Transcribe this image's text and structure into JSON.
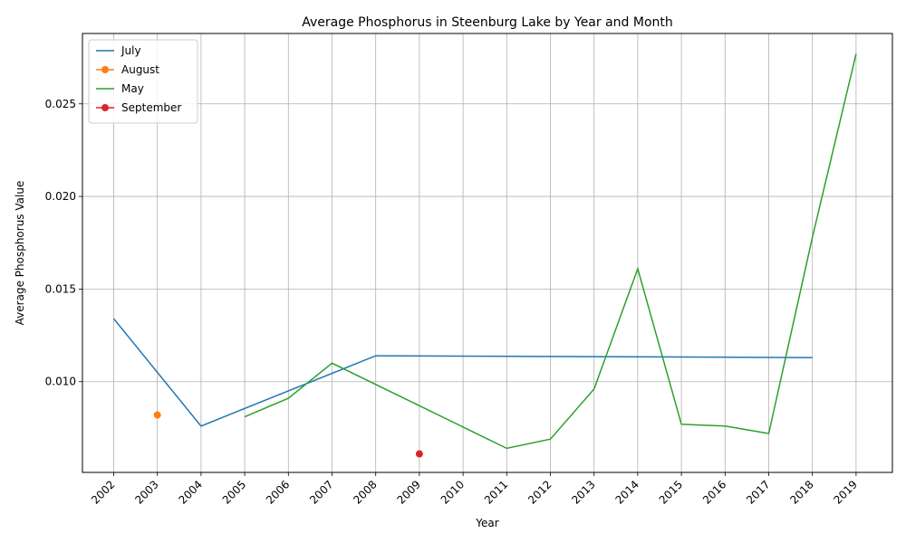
{
  "chart_data": {
    "type": "line",
    "title": "Average Phosphorus in Steenburg Lake by Year and Month",
    "xlabel": "Year",
    "ylabel": "Average Phosphorus Value",
    "categories": [
      "2002",
      "2003",
      "2004",
      "2005",
      "2006",
      "2007",
      "2008",
      "2009",
      "2010",
      "2011",
      "2012",
      "2013",
      "2014",
      "2015",
      "2016",
      "2017",
      "2018",
      "2019"
    ],
    "yticks": [
      "0.010",
      "0.015",
      "0.020",
      "0.025"
    ],
    "ylim": [
      0.0051,
      0.0288
    ],
    "grid": true,
    "legend": "top-left",
    "series": [
      {
        "name": "July",
        "color": "#1f77b4",
        "marker": false,
        "points": [
          [
            2002,
            0.0134
          ],
          [
            2004,
            0.0076
          ],
          [
            2008,
            0.0114
          ],
          [
            2018,
            0.0113
          ]
        ]
      },
      {
        "name": "August",
        "color": "#ff7f0e",
        "marker": true,
        "points": [
          [
            2003,
            0.0082
          ]
        ]
      },
      {
        "name": "May",
        "color": "#2ca02c",
        "marker": false,
        "points": [
          [
            2005,
            0.0081
          ],
          [
            2006,
            0.0091
          ],
          [
            2007,
            0.011
          ],
          [
            2011,
            0.0064
          ],
          [
            2012,
            0.0069
          ],
          [
            2013,
            0.0096
          ],
          [
            2014,
            0.0161
          ],
          [
            2015,
            0.0077
          ],
          [
            2016,
            0.0076
          ],
          [
            2017,
            0.0072
          ],
          [
            2018,
            0.0178
          ],
          [
            2019,
            0.0277
          ]
        ]
      },
      {
        "name": "September",
        "color": "#d62728",
        "marker": true,
        "points": [
          [
            2009,
            0.0061
          ]
        ]
      }
    ]
  }
}
